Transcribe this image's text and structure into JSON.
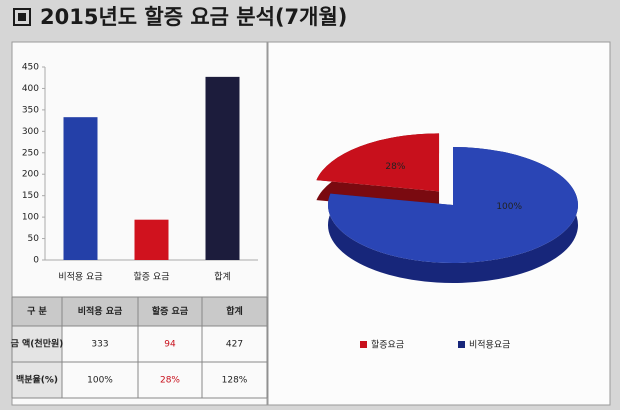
{
  "header": {
    "title": "2015년도 할증 요금 분석(7개월)"
  },
  "chart_data": [
    {
      "type": "bar",
      "categories": [
        "비적용 요금",
        "할증 요금",
        "합계"
      ],
      "values": [
        333,
        94,
        427
      ],
      "colors": [
        "#2440a8",
        "#d0121e",
        "#1c1c3c"
      ],
      "ylim": [
        0,
        450
      ],
      "yticks": [
        0,
        50,
        100,
        150,
        200,
        250,
        300,
        350,
        400,
        450
      ],
      "grid": false
    },
    {
      "type": "pie",
      "categories": [
        "할증요금",
        "비적용요금"
      ],
      "values": [
        28,
        100
      ],
      "value_labels": [
        "28%",
        "100%"
      ],
      "colors": [
        "#c8101c",
        "#2a45b5"
      ],
      "explode": [
        true,
        false
      ]
    }
  ],
  "table": {
    "header": [
      "구 분",
      "비적용 요금",
      "할증 요금",
      "합계"
    ],
    "rows": [
      [
        "금 액(천만원)",
        "333",
        "94",
        "427"
      ],
      [
        "백분율(%)",
        "100%",
        "28%",
        "128%"
      ]
    ]
  }
}
